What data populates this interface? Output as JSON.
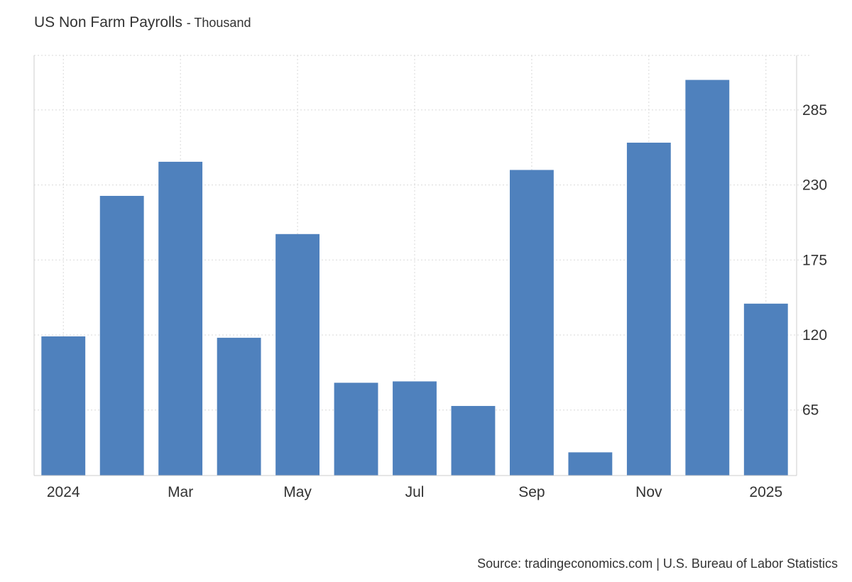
{
  "title": "US Non Farm Payrolls",
  "unit_suffix": "- Thousand",
  "source": "Source: tradingeconomics.com | U.S. Bureau of Labor Statistics",
  "colors": {
    "bar": "#4f81bd",
    "grid": "#d9d9d9",
    "axis": "#cccccc"
  },
  "chart_data": {
    "type": "bar",
    "title": "US Non Farm Payrolls",
    "ylabel": "",
    "xlabel": "",
    "categories": [
      "2024-01",
      "2024-02",
      "2024-03",
      "2024-04",
      "2024-05",
      "2024-06",
      "2024-07",
      "2024-08",
      "2024-09",
      "2024-10",
      "2024-11",
      "2024-12",
      "2025-01"
    ],
    "values": [
      119,
      222,
      247,
      118,
      194,
      85,
      86,
      68,
      241,
      34,
      261,
      307,
      143
    ],
    "ylim": [
      17,
      325
    ],
    "yticks": [
      65,
      120,
      175,
      230,
      285
    ],
    "xtick_labels": [
      {
        "index": 0,
        "label": "2024"
      },
      {
        "index": 2,
        "label": "Mar"
      },
      {
        "index": 4,
        "label": "May"
      },
      {
        "index": 6,
        "label": "Jul"
      },
      {
        "index": 8,
        "label": "Sep"
      },
      {
        "index": 10,
        "label": "Nov"
      },
      {
        "index": 12,
        "label": "2025"
      }
    ],
    "grid": true,
    "y_axis_side": "right"
  }
}
